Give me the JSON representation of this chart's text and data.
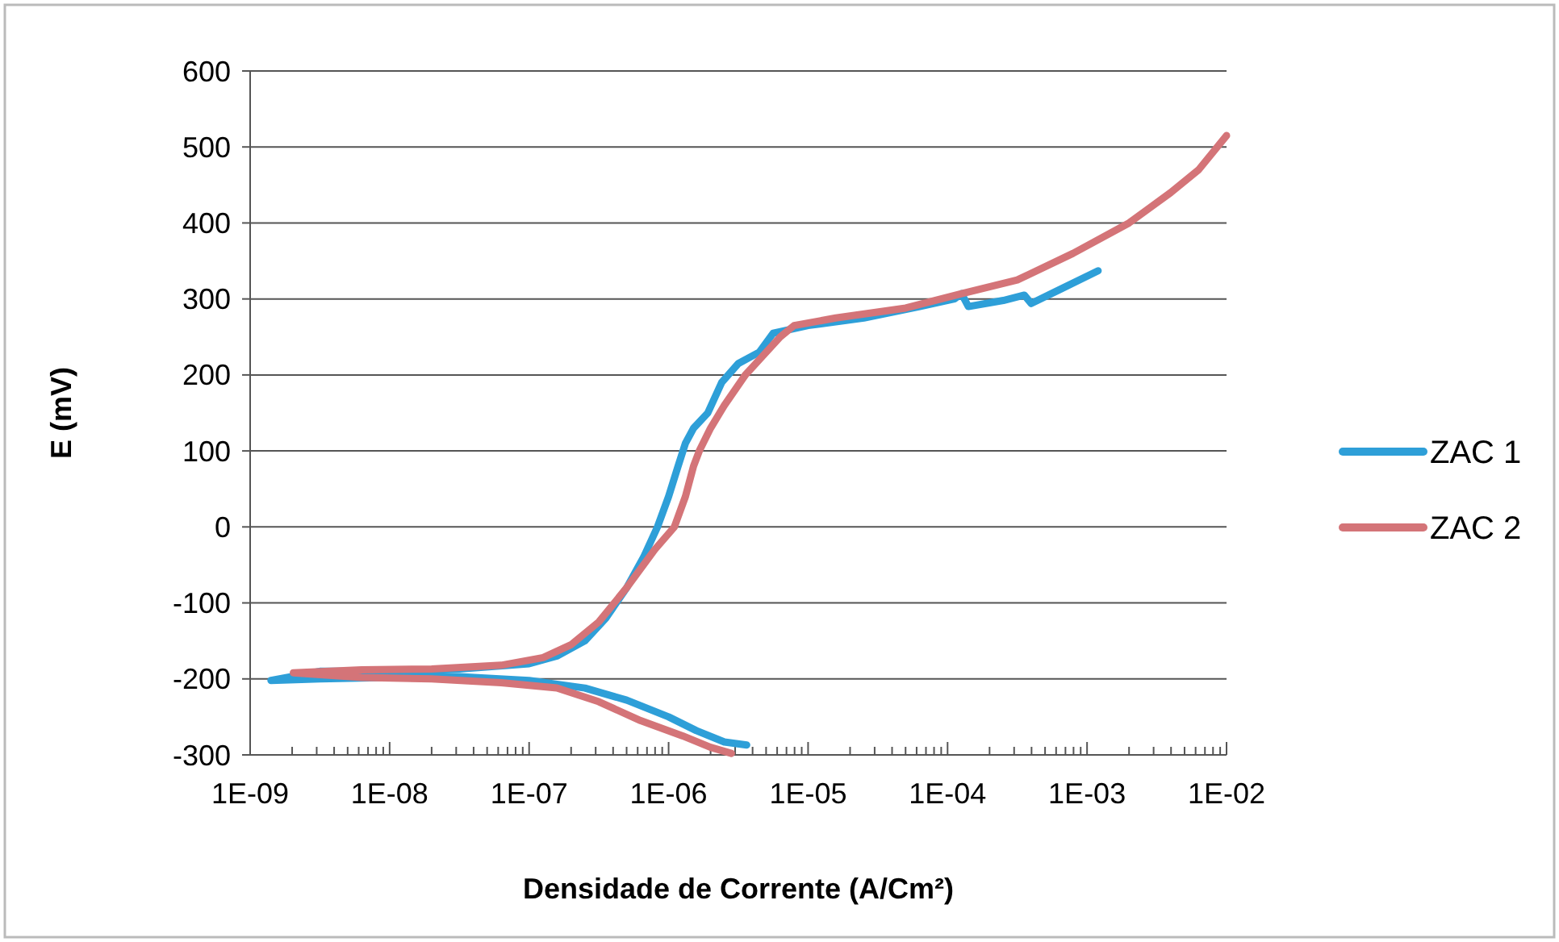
{
  "chart_data": {
    "type": "line",
    "xlabel": "Densidade de Corrente (A/Cm²)",
    "ylabel": "E (mV)",
    "log": "x",
    "xlim": [
      1e-09,
      0.01
    ],
    "ylim": [
      -300,
      600
    ],
    "xticks": [
      {
        "value": 1e-09,
        "label": "1E-09"
      },
      {
        "value": 2e-09,
        "label": null
      },
      {
        "value": 3e-09,
        "label": null
      },
      {
        "value": 4e-09,
        "label": null
      },
      {
        "value": 5e-09,
        "label": null
      },
      {
        "value": 6e-09,
        "label": null
      },
      {
        "value": 7e-09,
        "label": null
      },
      {
        "value": 8e-09,
        "label": null
      },
      {
        "value": 9e-09,
        "label": null
      },
      {
        "value": 1e-08,
        "label": "1E-08"
      },
      {
        "value": 2e-08,
        "label": null
      },
      {
        "value": 3e-08,
        "label": null
      },
      {
        "value": 4e-08,
        "label": null
      },
      {
        "value": 5e-08,
        "label": null
      },
      {
        "value": 6e-08,
        "label": null
      },
      {
        "value": 7e-08,
        "label": null
      },
      {
        "value": 8e-08,
        "label": null
      },
      {
        "value": 9e-08,
        "label": null
      },
      {
        "value": 1e-07,
        "label": "1E-07"
      },
      {
        "value": 2e-07,
        "label": null
      },
      {
        "value": 3e-07,
        "label": null
      },
      {
        "value": 4e-07,
        "label": null
      },
      {
        "value": 5e-07,
        "label": null
      },
      {
        "value": 6e-07,
        "label": null
      },
      {
        "value": 7e-07,
        "label": null
      },
      {
        "value": 8e-07,
        "label": null
      },
      {
        "value": 9e-07,
        "label": null
      },
      {
        "value": 1e-06,
        "label": "1E-06"
      },
      {
        "value": 2e-06,
        "label": null
      },
      {
        "value": 3e-06,
        "label": null
      },
      {
        "value": 4e-06,
        "label": null
      },
      {
        "value": 5e-06,
        "label": null
      },
      {
        "value": 6e-06,
        "label": null
      },
      {
        "value": 7e-06,
        "label": null
      },
      {
        "value": 8e-06,
        "label": null
      },
      {
        "value": 9e-06,
        "label": null
      },
      {
        "value": 1e-05,
        "label": "1E-05"
      },
      {
        "value": 2e-05,
        "label": null
      },
      {
        "value": 3e-05,
        "label": null
      },
      {
        "value": 4e-05,
        "label": null
      },
      {
        "value": 5e-05,
        "label": null
      },
      {
        "value": 6e-05,
        "label": null
      },
      {
        "value": 7e-05,
        "label": null
      },
      {
        "value": 8e-05,
        "label": null
      },
      {
        "value": 9e-05,
        "label": null
      },
      {
        "value": 0.0001,
        "label": "1E-04"
      },
      {
        "value": 0.0002,
        "label": null
      },
      {
        "value": 0.0003,
        "label": null
      },
      {
        "value": 0.0004,
        "label": null
      },
      {
        "value": 0.0005,
        "label": null
      },
      {
        "value": 0.0006,
        "label": null
      },
      {
        "value": 0.0007,
        "label": null
      },
      {
        "value": 0.0008,
        "label": null
      },
      {
        "value": 0.0009,
        "label": null
      },
      {
        "value": 0.001,
        "label": "1E-03"
      },
      {
        "value": 0.002,
        "label": null
      },
      {
        "value": 0.003,
        "label": null
      },
      {
        "value": 0.004,
        "label": null
      },
      {
        "value": 0.005,
        "label": null
      },
      {
        "value": 0.006,
        "label": null
      },
      {
        "value": 0.007,
        "label": null
      },
      {
        "value": 0.008,
        "label": null
      },
      {
        "value": 0.009,
        "label": null
      },
      {
        "value": 0.01,
        "label": "1E-02"
      }
    ],
    "yticks": [
      -300,
      -200,
      -100,
      0,
      100,
      200,
      300,
      400,
      500,
      600
    ],
    "grid": "y",
    "legend": "right",
    "marker": "none",
    "line_style": "solid",
    "series": [
      {
        "name": "ZAC 1",
        "color": "#2e9fd8",
        "x": [
          3.63e-06,
          2.51e-06,
          1.58e-06,
          1e-06,
          5.01e-07,
          2.51e-07,
          1e-07,
          3.16e-08,
          1e-08,
          3.16e-09,
          1.41e-09,
          3.16e-09,
          1e-08,
          3.16e-08,
          1e-07,
          1.58e-07,
          2.51e-07,
          3.55e-07,
          5.01e-07,
          6.61e-07,
          8.32e-07,
          1e-06,
          1.17e-06,
          1.32e-06,
          1.51e-06,
          1.91e-06,
          2.4e-06,
          3.16e-06,
          4.47e-06,
          5.62e-06,
          1e-05,
          2.51e-05,
          6.31e-05,
          0.000112,
          0.000126,
          0.000141,
          0.000251,
          0.000355,
          0.000398,
          0.000631,
          0.0012
        ],
        "values": [
          -287,
          -283,
          -268,
          -250,
          -228,
          -212,
          -202,
          -197,
          -198,
          -200,
          -202,
          -190,
          -190,
          -187,
          -180,
          -170,
          -150,
          -120,
          -80,
          -40,
          0,
          40,
          80,
          110,
          130,
          150,
          190,
          215,
          230,
          255,
          265,
          275,
          290,
          300,
          307,
          290,
          298,
          305,
          294,
          312,
          337
        ]
      },
      {
        "name": "ZAC 2",
        "color": "#d47478",
        "x": [
          2.82e-06,
          2e-06,
          1.26e-06,
          6.31e-07,
          3.16e-07,
          1.58e-07,
          6.31e-08,
          2e-08,
          6.31e-09,
          2.04e-09,
          6.31e-09,
          2e-08,
          6.31e-08,
          1.26e-07,
          2e-07,
          3.16e-07,
          5.01e-07,
          7.94e-07,
          1.1e-06,
          1.32e-06,
          1.51e-06,
          1.66e-06,
          2e-06,
          2.51e-06,
          3.55e-06,
          4.47e-06,
          6.31e-06,
          7.94e-06,
          1.58e-05,
          5.01e-05,
          0.000126,
          0.000316,
          0.000794,
          0.002,
          0.00398,
          0.00631,
          0.01
        ],
        "values": [
          -298,
          -290,
          -275,
          -255,
          -230,
          -212,
          -205,
          -200,
          -198,
          -192,
          -188,
          -187,
          -182,
          -172,
          -155,
          -125,
          -80,
          -30,
          0,
          40,
          80,
          100,
          130,
          160,
          200,
          220,
          250,
          265,
          275,
          288,
          307,
          325,
          360,
          400,
          440,
          470,
          515
        ]
      }
    ]
  }
}
